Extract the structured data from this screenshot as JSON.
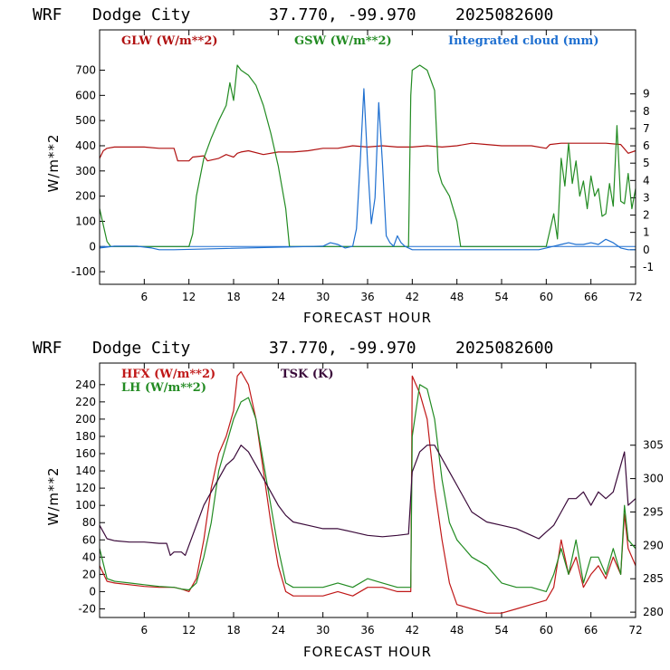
{
  "chart_data": [
    {
      "type": "line",
      "header": {
        "model": "WRF",
        "station": "Dodge City",
        "coords": "37.770, -99.970",
        "run": "2025082600"
      },
      "xlabel": "FORECAST HOUR",
      "ylabel": "W/m**2",
      "xlim": [
        0,
        72
      ],
      "ylim": [
        -150,
        860
      ],
      "x_ticks": [
        6,
        12,
        18,
        24,
        30,
        36,
        42,
        48,
        54,
        60,
        66,
        72
      ],
      "y_ticks": [
        -100,
        0,
        100,
        200,
        300,
        400,
        500,
        600,
        700
      ],
      "y2lim": [
        -2,
        12.7
      ],
      "y2_ticks": [
        -1,
        0,
        1,
        2,
        3,
        4,
        5,
        6,
        7,
        8,
        9
      ],
      "series": [
        {
          "name": "GLW (W/m**2)",
          "color": "#b01010",
          "axis": "left",
          "x": [
            0,
            0.5,
            1,
            2,
            4,
            6,
            8,
            10,
            10.5,
            12,
            12.5,
            14,
            14.5,
            16,
            17,
            18,
            18.5,
            19,
            20,
            22,
            24,
            26,
            28,
            30,
            32,
            34,
            36,
            38,
            40,
            42,
            44,
            46,
            48,
            50,
            52,
            54,
            56,
            58,
            60,
            60.5,
            62,
            64,
            66,
            68,
            70,
            71,
            72
          ],
          "y": [
            350,
            380,
            390,
            395,
            395,
            395,
            390,
            390,
            340,
            340,
            355,
            360,
            340,
            350,
            365,
            355,
            370,
            375,
            380,
            365,
            375,
            375,
            380,
            390,
            390,
            400,
            395,
            400,
            395,
            395,
            400,
            395,
            400,
            410,
            405,
            400,
            400,
            400,
            390,
            405,
            410,
            410,
            410,
            410,
            405,
            370,
            380
          ]
        },
        {
          "name": "GSW (W/m**2)",
          "color": "#228b22",
          "axis": "left",
          "x": [
            0,
            1,
            1.5,
            12,
            12.5,
            13,
            14,
            15,
            16,
            17,
            17.5,
            18,
            18.5,
            19,
            20,
            21,
            22,
            23,
            24,
            25,
            25.5,
            41.5,
            41.8,
            42,
            43,
            44,
            45,
            45.5,
            46,
            47,
            48,
            48.5,
            60,
            61,
            61.5,
            62,
            62.5,
            63,
            63.5,
            64,
            64.5,
            65,
            65.5,
            66,
            66.5,
            67,
            67.5,
            68,
            68.5,
            69,
            69.5,
            70,
            70.5,
            71,
            71.5,
            72
          ],
          "y": [
            150,
            20,
            0,
            0,
            50,
            200,
            350,
            430,
            500,
            560,
            650,
            580,
            720,
            700,
            680,
            640,
            560,
            450,
            320,
            150,
            0,
            0,
            600,
            700,
            720,
            700,
            620,
            300,
            250,
            200,
            100,
            0,
            0,
            130,
            30,
            350,
            240,
            410,
            250,
            340,
            200,
            260,
            150,
            280,
            200,
            230,
            120,
            130,
            250,
            160,
            480,
            180,
            170,
            290,
            150,
            230
          ]
        },
        {
          "name": "Integrated cloud (mm)",
          "color": "#1e6fd0",
          "axis": "right",
          "x": [
            0,
            1,
            2,
            3,
            4,
            5,
            6,
            7,
            8,
            9,
            10,
            30,
            31,
            32,
            33,
            34,
            34.5,
            35,
            35.5,
            36,
            36.5,
            37,
            37.5,
            38,
            38.5,
            39,
            39.5,
            40,
            40.5,
            41,
            42,
            59,
            60,
            61,
            62,
            63,
            64,
            65,
            66,
            67,
            68,
            69,
            70,
            71,
            72
          ],
          "y": [
            0.1,
            0.15,
            0.2,
            0.2,
            0.2,
            0.2,
            0.15,
            0.1,
            0,
            0,
            0,
            0.2,
            0.4,
            0.3,
            0.1,
            0.2,
            1.2,
            5,
            9.3,
            5,
            1.5,
            3,
            8.5,
            5,
            0.8,
            0.4,
            0.2,
            0.8,
            0.4,
            0.2,
            0,
            0,
            0.1,
            0.2,
            0.3,
            0.4,
            0.3,
            0.3,
            0.4,
            0.3,
            0.6,
            0.4,
            0.1,
            0,
            0
          ]
        }
      ]
    },
    {
      "type": "line",
      "header": {
        "model": "WRF",
        "station": "Dodge City",
        "coords": "37.770, -99.970",
        "run": "2025082600"
      },
      "xlabel": "FORECAST HOUR",
      "ylabel": "W/m**2",
      "xlim": [
        0,
        72
      ],
      "ylim": [
        -30,
        265
      ],
      "x_ticks": [
        6,
        12,
        18,
        24,
        30,
        36,
        42,
        48,
        54,
        60,
        66,
        72
      ],
      "y_ticks": [
        -20,
        0,
        20,
        40,
        60,
        80,
        100,
        120,
        140,
        160,
        180,
        200,
        220,
        240
      ],
      "y2lim": [
        279.2,
        317.3
      ],
      "y2_ticks": [
        280,
        285,
        290,
        295,
        300,
        305
      ],
      "series": [
        {
          "name": "HFX (W/m**2)",
          "color": "#c01818",
          "axis": "left",
          "x": [
            0,
            1,
            2,
            4,
            6,
            8,
            10,
            11,
            12,
            13,
            14,
            15,
            16,
            17,
            18,
            18.5,
            19,
            20,
            21,
            22,
            23,
            24,
            25,
            26,
            28,
            30,
            32,
            34,
            36,
            38,
            40,
            41.8,
            42,
            43,
            44,
            45,
            46,
            47,
            48,
            50,
            52,
            54,
            56,
            58,
            60,
            61,
            62,
            63,
            64,
            65,
            66,
            67,
            68,
            69,
            70,
            70.5,
            71,
            72
          ],
          "y": [
            30,
            12,
            10,
            8,
            6,
            5,
            5,
            3,
            0,
            15,
            60,
            120,
            160,
            180,
            210,
            250,
            255,
            240,
            200,
            140,
            80,
            30,
            0,
            -5,
            -5,
            -5,
            0,
            -5,
            5,
            5,
            0,
            0,
            250,
            230,
            200,
            120,
            60,
            10,
            -15,
            -20,
            -25,
            -25,
            -20,
            -15,
            -10,
            5,
            60,
            20,
            40,
            5,
            20,
            30,
            15,
            40,
            20,
            90,
            50,
            30
          ]
        },
        {
          "name": "LH (W/m**2)",
          "color": "#228b22",
          "axis": "left",
          "x": [
            0,
            1,
            2,
            4,
            6,
            8,
            10,
            11,
            12,
            13,
            14,
            15,
            16,
            17,
            18,
            19,
            20,
            21,
            22,
            23,
            24,
            25,
            26,
            28,
            30,
            32,
            34,
            36,
            38,
            40,
            41.8,
            42,
            43,
            44,
            45,
            46,
            47,
            48,
            50,
            52,
            54,
            56,
            58,
            60,
            61,
            62,
            63,
            64,
            65,
            66,
            67,
            68,
            69,
            70,
            70.5,
            71,
            72
          ],
          "y": [
            50,
            15,
            12,
            10,
            8,
            6,
            5,
            3,
            2,
            10,
            40,
            80,
            140,
            170,
            200,
            220,
            225,
            200,
            150,
            100,
            50,
            10,
            5,
            5,
            5,
            10,
            5,
            15,
            10,
            5,
            5,
            180,
            240,
            235,
            200,
            130,
            80,
            60,
            40,
            30,
            10,
            5,
            5,
            0,
            20,
            50,
            20,
            60,
            10,
            40,
            40,
            20,
            50,
            20,
            100,
            60,
            50
          ]
        },
        {
          "name": "TSK (K)",
          "color": "#3a0a3a",
          "axis": "right",
          "x": [
            0,
            0.5,
            1,
            2,
            4,
            6,
            8,
            9,
            9.5,
            10,
            11,
            11.5,
            12,
            13,
            14,
            15,
            16,
            17,
            18,
            19,
            20,
            21,
            22,
            23,
            24,
            25,
            26,
            28,
            30,
            32,
            34,
            36,
            38,
            40,
            41.5,
            42,
            43,
            44,
            45,
            46,
            47,
            48,
            50,
            52,
            54,
            56,
            58,
            59,
            60,
            61,
            62,
            63,
            64,
            65,
            66,
            67,
            68,
            69,
            70,
            70.5,
            71,
            72
          ],
          "y": [
            293,
            292,
            291,
            290.7,
            290.5,
            290.5,
            290.3,
            290.3,
            288.5,
            289,
            289,
            288.5,
            290,
            293,
            296,
            298,
            300,
            302,
            303,
            305,
            304,
            302,
            300,
            298,
            296,
            294.5,
            293.5,
            293,
            292.5,
            292.5,
            292,
            291.5,
            291.3,
            291.5,
            291.7,
            301,
            304,
            305,
            305,
            303,
            301,
            299,
            295,
            293.5,
            293,
            292.5,
            291.5,
            291,
            292,
            293,
            295,
            297,
            297,
            298,
            296,
            298,
            297,
            298,
            302,
            304,
            296,
            297
          ]
        }
      ]
    }
  ]
}
